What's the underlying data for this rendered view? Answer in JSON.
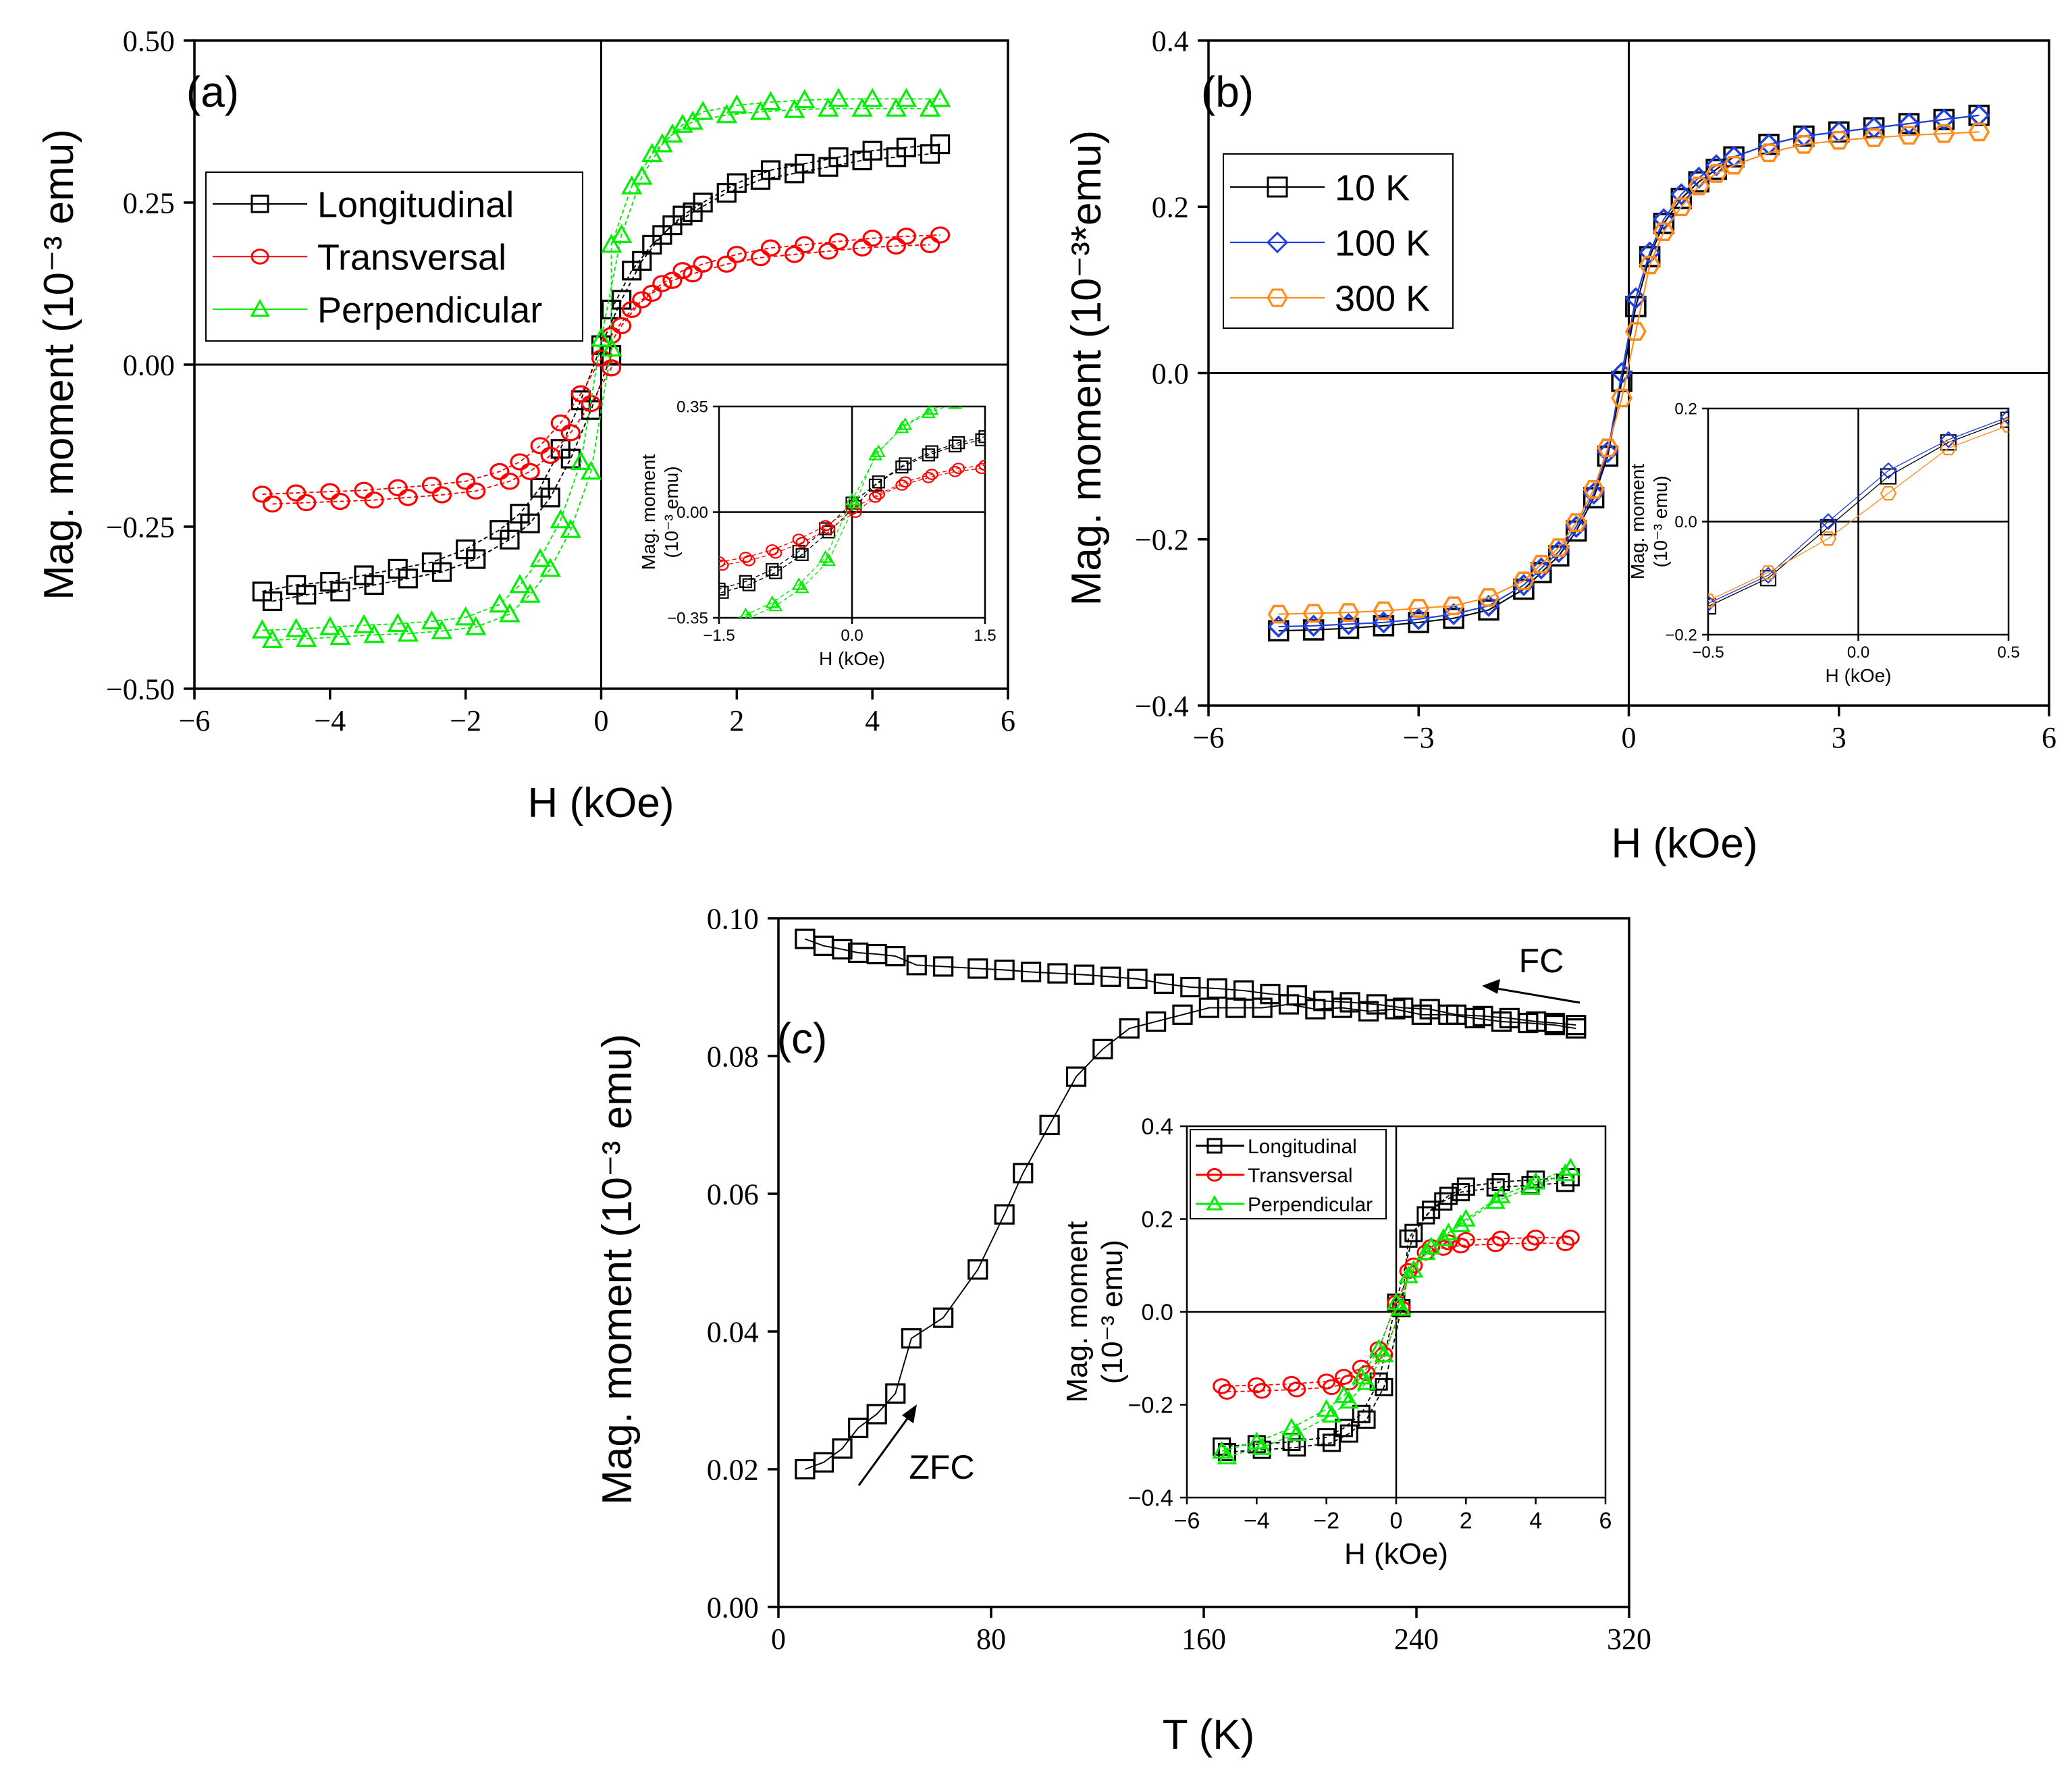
{
  "chart_data": [
    {
      "id": "a",
      "type": "scatter",
      "panel_label": "(a)",
      "xlabel": "H (kOe)",
      "ylabel": "Mag. moment (10⁻³ emu)",
      "xlim": [
        -6,
        6
      ],
      "ylim": [
        -0.5,
        0.5
      ],
      "xticks": [
        "−6",
        "−4",
        "−2",
        "0",
        "2",
        "4",
        "6"
      ],
      "yticks": [
        "−0.50",
        "−0.25",
        "0.00",
        "0.25",
        "0.50"
      ],
      "legend_position": "upper-left",
      "series": [
        {
          "name": "Longitudinal",
          "color": "#000000",
          "marker": "square",
          "x": [
            -5,
            -4.5,
            -4,
            -3.5,
            -3,
            -2.5,
            -2,
            -1.5,
            -1.2,
            -0.9,
            -0.6,
            -0.3,
            0,
            0.3,
            0.6,
            0.9,
            1.2,
            1.5,
            2,
            2.5,
            3,
            3.5,
            4,
            4.5,
            5
          ],
          "y": [
            -0.35,
            -0.34,
            -0.335,
            -0.325,
            -0.315,
            -0.305,
            -0.285,
            -0.255,
            -0.23,
            -0.19,
            -0.13,
            -0.055,
            0.03,
            0.1,
            0.16,
            0.2,
            0.23,
            0.25,
            0.28,
            0.3,
            0.31,
            0.32,
            0.33,
            0.335,
            0.34
          ]
        },
        {
          "name": "Transversal",
          "color": "#ff0000",
          "marker": "circle",
          "x": [
            -5,
            -4.5,
            -4,
            -3.5,
            -3,
            -2.5,
            -2,
            -1.5,
            -1.2,
            -0.9,
            -0.6,
            -0.3,
            0,
            0.3,
            0.6,
            0.9,
            1.2,
            1.5,
            2,
            2.5,
            3,
            3.5,
            4,
            4.5,
            5
          ],
          "y": [
            -0.2,
            -0.198,
            -0.196,
            -0.194,
            -0.19,
            -0.186,
            -0.18,
            -0.165,
            -0.15,
            -0.125,
            -0.09,
            -0.045,
            0.01,
            0.06,
            0.1,
            0.125,
            0.145,
            0.155,
            0.17,
            0.18,
            0.185,
            0.19,
            0.195,
            0.198,
            0.2
          ]
        },
        {
          "name": "Perpendicular",
          "color": "#00ee00",
          "marker": "triangle",
          "x": [
            -5,
            -4.5,
            -4,
            -3.5,
            -3,
            -2.5,
            -2,
            -1.5,
            -1.2,
            -0.9,
            -0.6,
            -0.3,
            0,
            0.3,
            0.6,
            0.9,
            1.2,
            1.5,
            2,
            2.5,
            3,
            3.5,
            4,
            4.5,
            5
          ],
          "y": [
            -0.41,
            -0.408,
            -0.405,
            -0.402,
            -0.4,
            -0.396,
            -0.39,
            -0.37,
            -0.34,
            -0.3,
            -0.24,
            -0.15,
            0.04,
            0.2,
            0.29,
            0.34,
            0.37,
            0.39,
            0.4,
            0.405,
            0.408,
            0.41,
            0.41,
            0.41,
            0.41
          ]
        }
      ],
      "inset": {
        "xlabel": "H (kOe)",
        "ylabel_line1": "Mag. moment",
        "ylabel_line2": "(10⁻³ emu)",
        "xlim": [
          -1.5,
          1.5
        ],
        "ylim": [
          -0.35,
          0.35
        ],
        "xticks": [
          "−1.5",
          "0.0",
          "1.5"
        ],
        "yticks": [
          "−0.35",
          "0.00",
          "0.35"
        ]
      }
    },
    {
      "id": "b",
      "type": "line",
      "panel_label": "(b)",
      "xlabel": "H (kOe)",
      "ylabel": "Mag. moment (10⁻³*emu)",
      "xlim": [
        -6,
        6
      ],
      "ylim": [
        -0.4,
        0.4
      ],
      "xticks": [
        "−6",
        "−3",
        "0",
        "3",
        "6"
      ],
      "yticks": [
        "−0.4",
        "−0.2",
        "0.0",
        "0.2",
        "0.4"
      ],
      "legend_position": "upper-left",
      "series": [
        {
          "name": "10 K",
          "color": "#000000",
          "marker": "square",
          "x": [
            -5,
            -4.5,
            -4,
            -3.5,
            -3,
            -2.5,
            -2,
            -1.5,
            -1.25,
            -1,
            -0.75,
            -0.5,
            -0.3,
            -0.1,
            0.1,
            0.3,
            0.5,
            0.75,
            1,
            1.25,
            1.5,
            2,
            2.5,
            3,
            3.5,
            4,
            4.5,
            5
          ],
          "y": [
            -0.31,
            -0.309,
            -0.307,
            -0.304,
            -0.3,
            -0.295,
            -0.285,
            -0.26,
            -0.24,
            -0.22,
            -0.19,
            -0.15,
            -0.1,
            -0.01,
            0.08,
            0.14,
            0.18,
            0.21,
            0.23,
            0.245,
            0.26,
            0.275,
            0.285,
            0.29,
            0.295,
            0.3,
            0.305,
            0.31
          ]
        },
        {
          "name": "100 K",
          "color": "#1f3fdf",
          "marker": "diamond",
          "x": [
            -5,
            -4.5,
            -4,
            -3.5,
            -3,
            -2.5,
            -2,
            -1.5,
            -1.25,
            -1,
            -0.75,
            -0.5,
            -0.3,
            -0.1,
            0.1,
            0.3,
            0.5,
            0.75,
            1,
            1.25,
            1.5,
            2,
            2.5,
            3,
            3.5,
            4,
            4.5,
            5
          ],
          "y": [
            -0.305,
            -0.304,
            -0.302,
            -0.3,
            -0.296,
            -0.29,
            -0.28,
            -0.255,
            -0.235,
            -0.215,
            -0.185,
            -0.145,
            -0.095,
            0,
            0.09,
            0.145,
            0.185,
            0.215,
            0.235,
            0.25,
            0.26,
            0.275,
            0.285,
            0.29,
            0.295,
            0.3,
            0.305,
            0.31
          ]
        },
        {
          "name": "300 K",
          "color": "#ff8c1a",
          "marker": "hexagon",
          "x": [
            -5,
            -4.5,
            -4,
            -3.5,
            -3,
            -2.5,
            -2,
            -1.5,
            -1.25,
            -1,
            -0.75,
            -0.5,
            -0.3,
            -0.1,
            0.1,
            0.3,
            0.5,
            0.75,
            1,
            1.25,
            1.5,
            2,
            2.5,
            3,
            3.5,
            4,
            4.5,
            5
          ],
          "y": [
            -0.29,
            -0.289,
            -0.288,
            -0.286,
            -0.283,
            -0.28,
            -0.27,
            -0.25,
            -0.23,
            -0.21,
            -0.18,
            -0.14,
            -0.09,
            -0.03,
            0.05,
            0.13,
            0.17,
            0.2,
            0.225,
            0.24,
            0.25,
            0.265,
            0.275,
            0.28,
            0.283,
            0.286,
            0.288,
            0.29
          ]
        }
      ],
      "inset": {
        "xlabel": "H (kOe)",
        "ylabel_line1": "Mag. moment",
        "ylabel_line2": "(10⁻³ emu)",
        "xlim": [
          -0.5,
          0.5
        ],
        "ylim": [
          -0.2,
          0.2
        ],
        "xticks": [
          "−0.5",
          "0.0",
          "0.5"
        ],
        "yticks": [
          "−0.2",
          "0.0",
          "0.2"
        ]
      }
    },
    {
      "id": "c",
      "type": "scatter",
      "panel_label": "(c)",
      "xlabel": "T (K)",
      "ylabel": "Mag. moment (10⁻³ emu)",
      "xlim": [
        0,
        320
      ],
      "ylim": [
        0,
        0.1
      ],
      "xticks": [
        "0",
        "80",
        "160",
        "240",
        "320"
      ],
      "yticks": [
        "0.00",
        "0.02",
        "0.04",
        "0.06",
        "0.08",
        "0.10"
      ],
      "annotations": {
        "fc": "FC",
        "zfc": "ZFC"
      },
      "series": [
        {
          "name": "ZFC",
          "color": "#000000",
          "marker": "square",
          "x": [
            10,
            17,
            24,
            30,
            37,
            44,
            50,
            62,
            75,
            85,
            92,
            102,
            112,
            122,
            132,
            142,
            152,
            162,
            172,
            182,
            192,
            202,
            212,
            222,
            232,
            242,
            252,
            262,
            272,
            282,
            292,
            300
          ],
          "y": [
            0.02,
            0.021,
            0.023,
            0.026,
            0.028,
            0.031,
            0.039,
            0.042,
            0.049,
            0.057,
            0.063,
            0.07,
            0.077,
            0.081,
            0.084,
            0.085,
            0.086,
            0.087,
            0.087,
            0.087,
            0.0875,
            0.0868,
            0.087,
            0.0865,
            0.0868,
            0.086,
            0.086,
            0.0855,
            0.085,
            0.0848,
            0.0845,
            0.084
          ]
        },
        {
          "name": "FC",
          "color": "#000000",
          "marker": "square",
          "x": [
            10,
            17,
            24,
            30,
            37,
            44,
            52,
            62,
            75,
            85,
            95,
            105,
            115,
            125,
            135,
            145,
            155,
            165,
            175,
            185,
            195,
            205,
            215,
            225,
            235,
            245,
            255,
            265,
            275,
            285,
            292,
            300
          ],
          "y": [
            0.097,
            0.096,
            0.0955,
            0.095,
            0.0948,
            0.0945,
            0.0932,
            0.093,
            0.0927,
            0.0925,
            0.0922,
            0.092,
            0.0918,
            0.0915,
            0.0912,
            0.0905,
            0.09,
            0.0898,
            0.0895,
            0.089,
            0.0888,
            0.088,
            0.0878,
            0.0875,
            0.087,
            0.0868,
            0.086,
            0.0858,
            0.0855,
            0.085,
            0.0848,
            0.0845
          ]
        }
      ],
      "inset": {
        "xlabel": "H (kOe)",
        "ylabel_line1": "Mag. moment",
        "ylabel_line2": "(10⁻³ emu)",
        "xlim": [
          -6,
          6
        ],
        "ylim": [
          -0.4,
          0.4
        ],
        "xticks": [
          "−6",
          "−4",
          "−2",
          "0",
          "2",
          "4",
          "6"
        ],
        "yticks": [
          "−0.4",
          "−0.2",
          "0.0",
          "0.2",
          "0.4"
        ],
        "legend": [
          "Longitudinal",
          "Transversal",
          "Perpendicular"
        ],
        "series": [
          {
            "name": "Longitudinal",
            "color": "#000000",
            "marker": "square",
            "x": [
              -5,
              -4,
              -3,
              -2,
              -1.5,
              -1,
              -0.5,
              0,
              0.5,
              1,
              1.5,
              2,
              3,
              4,
              5
            ],
            "y": [
              -0.29,
              -0.285,
              -0.28,
              -0.27,
              -0.25,
              -0.22,
              -0.15,
              0.02,
              0.17,
              0.22,
              0.25,
              0.27,
              0.28,
              0.285,
              0.29
            ]
          },
          {
            "name": "Transversal",
            "color": "#ff0000",
            "marker": "circle",
            "x": [
              -5,
              -4,
              -3,
              -2,
              -1.5,
              -1,
              -0.5,
              0,
              0.5,
              1,
              1.5,
              2,
              3,
              4,
              5
            ],
            "y": [
              -0.16,
              -0.158,
              -0.155,
              -0.15,
              -0.14,
              -0.12,
              -0.08,
              0.02,
              0.1,
              0.14,
              0.15,
              0.155,
              0.158,
              0.16,
              0.16
            ]
          },
          {
            "name": "Perpendicular",
            "color": "#00ee00",
            "marker": "triangle",
            "x": [
              -5,
              -4,
              -3,
              -2,
              -1.5,
              -1,
              -0.5,
              0,
              0.5,
              1,
              1.5,
              2,
              3,
              4,
              5
            ],
            "y": [
              -0.3,
              -0.28,
              -0.25,
              -0.21,
              -0.18,
              -0.14,
              -0.08,
              0.02,
              0.09,
              0.14,
              0.17,
              0.2,
              0.25,
              0.28,
              0.31
            ]
          }
        ]
      }
    }
  ]
}
